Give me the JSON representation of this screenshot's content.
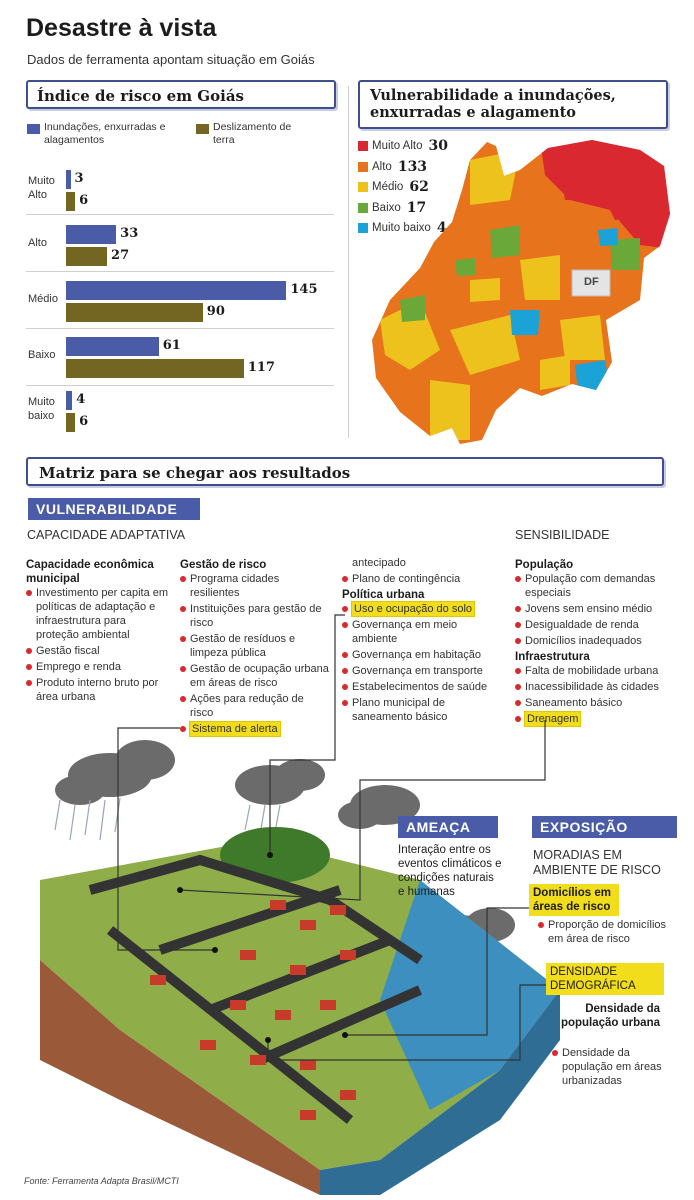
{
  "header": {
    "title": "Desastre à vista",
    "subtitle": "Dados de ferramenta apontam situação em Goiás"
  },
  "bar_section": {
    "title": "Índice de risco em Goiás",
    "legend1": "Inundações, enxurradas e alagamentos",
    "legend2": "Deslizamento de terra",
    "cat_lines": [
      [
        "Muito",
        "Alto"
      ],
      [
        "Alto"
      ],
      [
        "Médio"
      ],
      [
        "Baixo"
      ],
      [
        "Muito",
        "baixo"
      ]
    ]
  },
  "map_section": {
    "title": "Vulnerabilidade a inundações, enxurradas e alagamento",
    "legend": [
      {
        "label": "Muito Alto",
        "value": "30",
        "color": "#d9282f"
      },
      {
        "label": "Alto",
        "value": "133",
        "color": "#e8731d"
      },
      {
        "label": "Médio",
        "value": "62",
        "color": "#eec21c"
      },
      {
        "label": "Baixo",
        "value": "17",
        "color": "#6aa83a"
      },
      {
        "label": "Muito baixo",
        "value": "4",
        "color": "#1ba3d8"
      }
    ],
    "df_label": "DF"
  },
  "chart_data": [
    {
      "type": "bar",
      "title": "Índice de risco em Goiás",
      "orientation": "horizontal",
      "categories": [
        "Muito Alto",
        "Alto",
        "Médio",
        "Baixo",
        "Muito baixo"
      ],
      "series": [
        {
          "name": "Inundações, enxurradas e alagamentos",
          "values": [
            3,
            33,
            145,
            61,
            4
          ],
          "color": "#4a5ba7"
        },
        {
          "name": "Deslizamento de terra",
          "values": [
            6,
            27,
            90,
            117,
            6
          ],
          "color": "#736522"
        }
      ],
      "xlim": [
        0,
        150
      ]
    },
    {
      "type": "table",
      "title": "Vulnerabilidade a inundações, enxurradas e alagamento",
      "categories": [
        "Muito Alto",
        "Alto",
        "Médio",
        "Baixo",
        "Muito baixo"
      ],
      "values": [
        30,
        133,
        62,
        17,
        4
      ]
    }
  ],
  "matrix": {
    "title": "Matriz para se chegar aos resultados",
    "vulnerabilidade": "VULNERABILIDADE",
    "capacidade": "CAPACIDADE ADAPTATIVA",
    "sensibilidade": "SENSIBILIDADE",
    "col1": {
      "heading": "Capacidade econômica municipal",
      "items": [
        "Investimento per capita em políticas de adaptação e infraestrutura para proteção ambiental",
        "Gestão fiscal",
        "Emprego e renda",
        "Produto interno bruto por área urbana"
      ]
    },
    "col2": {
      "heading": "Gestão de risco",
      "items": [
        "Programa cidades resilientes",
        "Instituições para gestão de risco",
        "Gestão de resíduos e limpeza pública",
        "Gestão de ocupação urbana em áreas de risco",
        "Ações para redução de risco"
      ],
      "highlight": "Sistema de alerta"
    },
    "col3": {
      "carry": "antecipado",
      "first": "Plano de contingência",
      "heading": "Política urbana",
      "highlight": "Uso e ocupação do solo",
      "items": [
        "Governança em meio ambiente",
        "Governança em habitação",
        "Governança em transporte",
        "Estabelecimentos de saúde",
        "Plano municipal de saneamento básico"
      ]
    },
    "col4": {
      "heading1": "População",
      "items1": [
        "População com demandas especiais",
        "Jovens sem ensino médio",
        "Desigualdade de renda",
        "Domicílios inadequados"
      ],
      "heading2": "Infraestrutura",
      "items2": [
        "Falta de mobilidade urbana",
        "Inacessibilidade às cidades",
        "Saneamento básico"
      ],
      "highlight": "Drenagem"
    },
    "ameaca": {
      "label": "AMEAÇA",
      "text": "Interação entre os eventos climáticos e condições naturais e humanas"
    },
    "exposicao": {
      "label": "EXPOSIÇÃO",
      "subtitle": "MORADIAS EM AMBIENTE DE RISCO",
      "tag1": "Domicílios em áreas de risco",
      "item1": "Proporção de domicílios em área de risco",
      "tag2": "DENSIDADE DEMOGRÁFICA",
      "heading2": "Densidade da população urbana",
      "item2": "Densidade da população em áreas urbanizadas"
    }
  },
  "source": "Fonte: Ferramenta Adapta Brasil/MCTI"
}
